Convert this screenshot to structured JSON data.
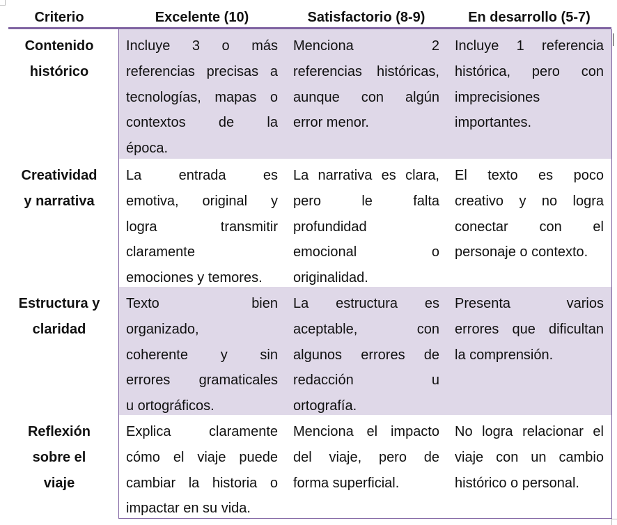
{
  "colors": {
    "accent": "#8064a2",
    "shade": "#dfd8e8"
  },
  "header": [
    "Criterio",
    "Excelente (10)",
    "Satisfactorio (8-9)",
    "En desarrollo (5-7)"
  ],
  "rows": [
    {
      "criterion": [
        "Contenido",
        "histórico"
      ],
      "shaded": true,
      "cells": [
        [
          "Incluye 3 o más",
          "referencias precisas a",
          "tecnologías, mapas o",
          "contextos de la",
          "época."
        ],
        [
          "Menciona 2",
          "referencias históricas,",
          "aunque con algún",
          "error menor."
        ],
        [
          "Incluye 1 referencia",
          "histórica, pero con",
          "imprecisiones",
          "importantes."
        ]
      ]
    },
    {
      "criterion": [
        "Creatividad",
        "y narrativa"
      ],
      "shaded": false,
      "cells": [
        [
          "La entrada es",
          "emotiva, original y",
          "logra transmitir",
          "claramente",
          "emociones y temores."
        ],
        [
          "La narrativa es clara,",
          "pero le falta",
          "profundidad",
          "emocional o",
          "originalidad."
        ],
        [
          "El texto es poco",
          "creativo y no logra",
          "conectar con el",
          "personaje o contexto."
        ]
      ]
    },
    {
      "criterion": [
        "Estructura y",
        "claridad"
      ],
      "shaded": true,
      "cells": [
        [
          "Texto bien",
          "organizado,",
          "coherente y sin",
          "errores gramaticales",
          "u ortográficos."
        ],
        [
          "La estructura es",
          "aceptable, con",
          "algunos errores de",
          "redacción u",
          "ortografía."
        ],
        [
          "Presenta varios",
          "errores que dificultan",
          "la comprensión."
        ]
      ]
    },
    {
      "criterion": [
        "Reflexión",
        "sobre el",
        "viaje"
      ],
      "shaded": false,
      "cells": [
        [
          "Explica claramente",
          "cómo el viaje puede",
          "cambiar la historia o",
          "impactar en su vida."
        ],
        [
          "Menciona el impacto",
          "del viaje, pero de",
          "forma superficial."
        ],
        [
          "No logra relacionar el",
          "viaje con un cambio",
          "histórico o personal."
        ]
      ]
    }
  ]
}
